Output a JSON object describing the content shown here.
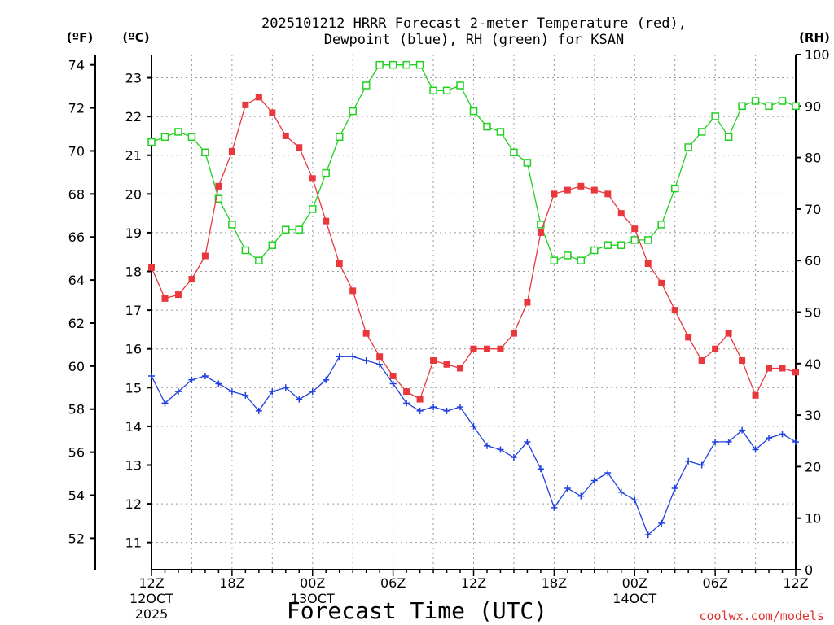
{
  "chart_data": {
    "type": "line",
    "title_line1": "2025101212 HRRR Forecast 2-meter Temperature (red),",
    "title_line2": "Dewpoint (blue), RH (green) for KSAN",
    "xlabel": "Forecast Time (UTC)",
    "credit": "coolwx.com/models",
    "unit_f": "(ºF)",
    "unit_c": "(ºC)",
    "unit_rh": "(RH)",
    "x_range_hours": [
      0,
      48
    ],
    "ylim_c": [
      10.3,
      23.6
    ],
    "ylim_rh": [
      0,
      100
    ],
    "y_ticks_f": [
      52,
      54,
      56,
      58,
      60,
      62,
      64,
      66,
      68,
      70,
      72,
      74
    ],
    "y_ticks_c": [
      11,
      12,
      13,
      14,
      15,
      16,
      17,
      18,
      19,
      20,
      21,
      22,
      23
    ],
    "y_ticks_rh": [
      0,
      10,
      20,
      30,
      40,
      50,
      60,
      70,
      80,
      90,
      100
    ],
    "x_ticks": [
      {
        "hour": 0,
        "label": "12Z",
        "label2": "12OCT",
        "label3": "2025"
      },
      {
        "hour": 6,
        "label": "18Z",
        "label2": "",
        "label3": ""
      },
      {
        "hour": 12,
        "label": "00Z",
        "label2": "13OCT",
        "label3": ""
      },
      {
        "hour": 18,
        "label": "06Z",
        "label2": "",
        "label3": ""
      },
      {
        "hour": 24,
        "label": "12Z",
        "label2": "",
        "label3": ""
      },
      {
        "hour": 30,
        "label": "18Z",
        "label2": "",
        "label3": ""
      },
      {
        "hour": 36,
        "label": "00Z",
        "label2": "14OCT",
        "label3": ""
      },
      {
        "hour": 42,
        "label": "06Z",
        "label2": "",
        "label3": ""
      },
      {
        "hour": 48,
        "label": "12Z",
        "label2": "",
        "label3": ""
      }
    ],
    "series": [
      {
        "name": "Temperature",
        "unit": "C",
        "color": "#e8383d",
        "marker": "filled-square",
        "values": [
          18.1,
          17.3,
          17.4,
          17.8,
          18.4,
          20.2,
          21.1,
          22.3,
          22.5,
          22.1,
          21.5,
          21.2,
          20.4,
          19.3,
          18.2,
          17.5,
          16.4,
          15.8,
          15.3,
          14.9,
          14.7,
          15.7,
          15.6,
          15.5,
          16.0,
          16.0,
          16.0,
          16.4,
          17.2,
          19.0,
          20.0,
          20.1,
          20.2,
          20.1,
          20.0,
          19.5,
          19.1,
          18.2,
          17.7,
          17.0,
          16.3,
          15.7,
          16.0,
          16.4,
          15.7,
          14.8,
          15.5,
          15.5,
          15.4
        ]
      },
      {
        "name": "Dewpoint",
        "unit": "C",
        "color": "#2040e0",
        "marker": "plus",
        "values": [
          15.3,
          14.6,
          14.9,
          15.2,
          15.3,
          15.1,
          14.9,
          14.8,
          14.4,
          14.9,
          15.0,
          14.7,
          14.9,
          15.2,
          15.8,
          15.8,
          15.7,
          15.6,
          15.1,
          14.6,
          14.4,
          14.5,
          14.4,
          14.5,
          14.0,
          13.5,
          13.4,
          13.2,
          13.6,
          12.9,
          11.9,
          12.4,
          12.2,
          12.6,
          12.8,
          12.3,
          12.1,
          11.2,
          11.5,
          12.4,
          13.1,
          13.0,
          13.6,
          13.6,
          13.9,
          13.4,
          13.7,
          13.8,
          13.6
        ]
      },
      {
        "name": "RH",
        "unit": "%",
        "color": "#20d020",
        "marker": "open-square",
        "values": [
          83,
          84,
          85,
          84,
          81,
          72,
          67,
          62,
          60,
          63,
          66,
          66,
          70,
          77,
          84,
          89,
          94,
          98,
          98,
          98,
          98,
          93,
          93,
          94,
          89,
          86,
          85,
          81,
          79,
          67,
          60,
          61,
          60,
          62,
          63,
          63,
          64,
          64,
          67,
          74,
          82,
          85,
          88,
          84,
          90,
          91,
          90,
          91,
          90
        ]
      }
    ]
  }
}
